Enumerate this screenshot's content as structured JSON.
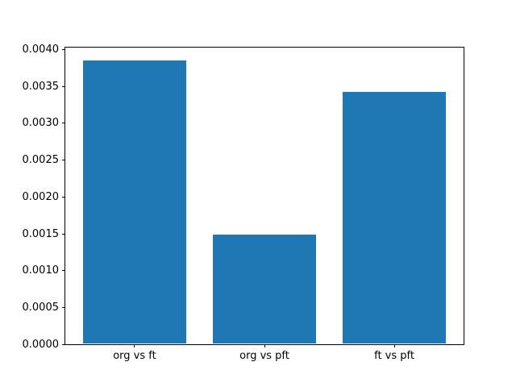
{
  "chart_data": {
    "type": "bar",
    "title": "",
    "xlabel": "",
    "ylabel": "",
    "categories": [
      "org vs ft",
      "org vs pft",
      "ft vs pft"
    ],
    "values": [
      0.00385,
      0.00149,
      0.00343
    ],
    "bar_color": "#1f77b4",
    "bar_width": 0.8,
    "xlim": [
      -0.54,
      2.54
    ],
    "ylim": [
      0,
      0.0040425
    ],
    "yticks": [
      0.0,
      0.0005,
      0.001,
      0.0015,
      0.002,
      0.0025,
      0.003,
      0.0035,
      0.004
    ],
    "ytick_labels": [
      "0.0000",
      "0.0005",
      "0.0010",
      "0.0015",
      "0.0020",
      "0.0025",
      "0.0030",
      "0.0035",
      "0.0040"
    ],
    "grid": false,
    "legend": null,
    "spine_color": "#000000",
    "background_color": "#ffffff"
  }
}
